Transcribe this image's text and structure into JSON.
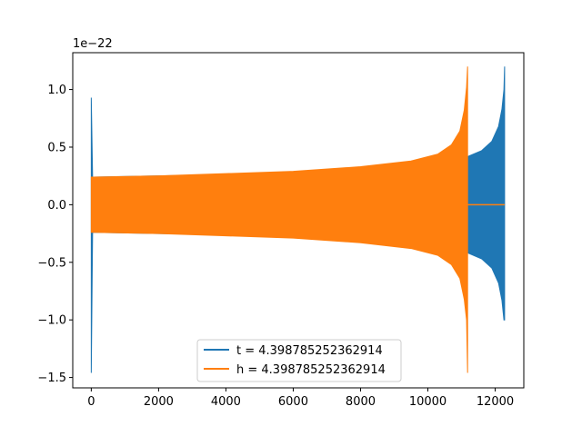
{
  "chart_data": {
    "type": "line",
    "title": "",
    "xlabel": "",
    "ylabel": "",
    "offset_text": "1e−22",
    "xlim": [
      -550,
      12850
    ],
    "ylim": [
      -1.59,
      1.32
    ],
    "x_ticks": [
      0,
      2000,
      4000,
      6000,
      8000,
      10000,
      12000
    ],
    "x_tick_labels": [
      "0",
      "2000",
      "4000",
      "6000",
      "8000",
      "10000",
      "12000"
    ],
    "y_ticks": [
      -1.5,
      -1.0,
      -0.5,
      0.0,
      0.5,
      1.0
    ],
    "y_tick_labels": [
      "−1.5",
      "−1.0",
      "−0.5",
      "0.0",
      "0.5",
      "1.0"
    ],
    "grid": false,
    "legend_position": "lower center",
    "series": [
      {
        "name": "t = 4.398785252362914",
        "color": "#1f77b4",
        "envelope": {
          "x": [
            0,
            40,
            2000,
            4000,
            6000,
            8000,
            10000,
            10800,
            11200,
            11600,
            11900,
            12100,
            12200,
            12260,
            12280
          ],
          "upper": [
            0.93,
            0.24,
            0.25,
            0.26,
            0.28,
            0.31,
            0.36,
            0.39,
            0.42,
            0.47,
            0.55,
            0.68,
            0.83,
            1.0,
            1.2
          ],
          "lower": [
            -1.46,
            -0.24,
            -0.25,
            -0.26,
            -0.28,
            -0.31,
            -0.36,
            -0.39,
            -0.42,
            -0.47,
            -0.55,
            -0.68,
            -0.83,
            -1.0,
            -1.0
          ]
        }
      },
      {
        "name": "h = 4.398785252362914",
        "color": "#ff7f0e",
        "envelope": {
          "x": [
            0,
            40,
            2000,
            4000,
            6000,
            8000,
            9500,
            10300,
            10700,
            10950,
            11080,
            11150,
            11180
          ],
          "upper": [
            0.24,
            0.24,
            0.25,
            0.27,
            0.29,
            0.33,
            0.38,
            0.44,
            0.52,
            0.64,
            0.82,
            1.02,
            1.2
          ],
          "lower": [
            -0.24,
            -0.24,
            -0.25,
            -0.27,
            -0.29,
            -0.33,
            -0.38,
            -0.44,
            -0.52,
            -0.64,
            -0.82,
            -1.0,
            -1.46
          ]
        },
        "tail": {
          "x": [
            11180,
            12280
          ],
          "y": [
            0,
            0
          ]
        }
      }
    ]
  }
}
